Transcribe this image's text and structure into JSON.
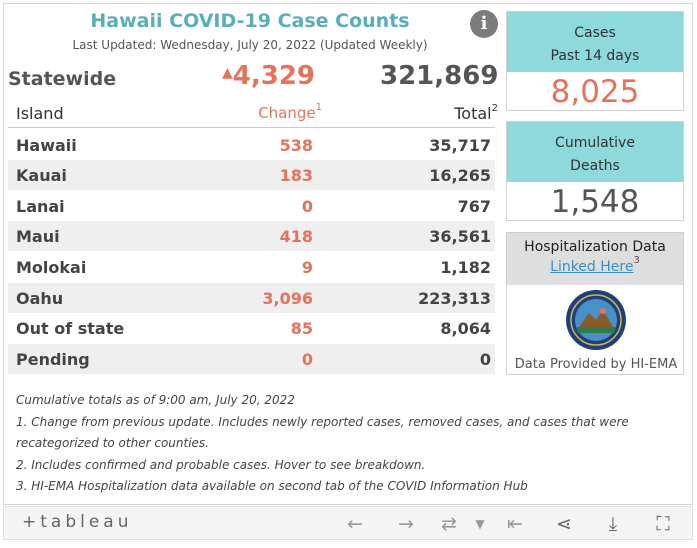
{
  "header": {
    "title": "Hawaii COVID-19 Case Counts",
    "updated": "Last Updated: Wednesday, July 20, 2022 (Updated Weekly)"
  },
  "statewide": {
    "label": "Statewide",
    "change": "4,329",
    "total": "321,869"
  },
  "table": {
    "col_island": "Island",
    "col_change": "Change",
    "col_change_note": "1",
    "col_total": "Total",
    "col_total_note": "2",
    "rows": [
      {
        "name": "Hawaii",
        "change": "538",
        "total": "35,717"
      },
      {
        "name": "Kauai",
        "change": "183",
        "total": "16,265"
      },
      {
        "name": "Lanai",
        "change": "0",
        "total": "767"
      },
      {
        "name": "Maui",
        "change": "418",
        "total": "36,561"
      },
      {
        "name": "Molokai",
        "change": "9",
        "total": "1,182"
      },
      {
        "name": "Oahu",
        "change": "3,096",
        "total": "223,313"
      },
      {
        "name": "Out of state",
        "change": "85",
        "total": "8,064"
      },
      {
        "name": "Pending",
        "change": "0",
        "total": "0"
      }
    ]
  },
  "cases_card": {
    "line1": "Cases",
    "line2": "Past 14 days",
    "value": "8,025"
  },
  "deaths_card": {
    "line1": "Cumulative",
    "line2": "Deaths",
    "value": "1,548"
  },
  "hosp_card": {
    "title": "Hospitalization Data",
    "link": "Linked Here",
    "link_note": "3",
    "credit": "Data Provided by HI-EMA",
    "seal_icon": "hi-ema-seal-icon"
  },
  "notes": [
    "Cumulative totals as of 9:00 am, July 20, 2022",
    "1. Change from previous update. Includes newly reported cases, removed cases, and cases that were",
    "recategorized to other counties.",
    "2. Includes confirmed and probable cases. Hover to see breakdown.",
    "3. HI-EMA Hospitalization data available on second tab of the COVID Information Hub"
  ],
  "toolbar": {
    "logo": "+tableau",
    "icons": [
      "undo-icon",
      "redo-icon",
      "revert-icon",
      "pause-icon",
      "share-icon",
      "download-icon",
      "fullscreen-icon"
    ]
  },
  "colors": {
    "accent_teal": "#5aaeb9",
    "card_teal": "#8dd9dc",
    "change_red": "#e5735b",
    "link_blue": "#3a8fc6"
  }
}
